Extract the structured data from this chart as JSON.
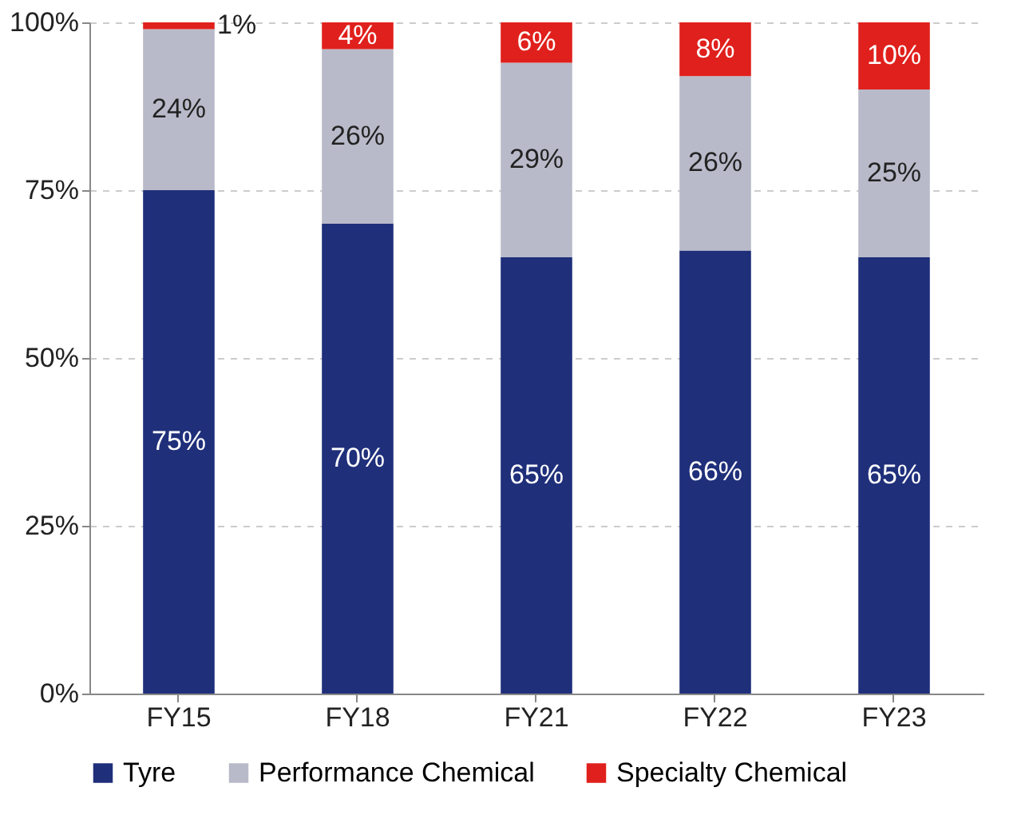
{
  "chart_data": {
    "type": "bar",
    "stacked": true,
    "categories": [
      "FY15",
      "FY18",
      "FY21",
      "FY22",
      "FY23"
    ],
    "series": [
      {
        "name": "Tyre",
        "color": "#1f2f7a",
        "values": [
          75,
          70,
          65,
          66,
          65
        ],
        "value_labels": [
          "75%",
          "70%",
          "65%",
          "66%",
          "65%"
        ]
      },
      {
        "name": "Performance Chemical",
        "color": "#b9bac9",
        "values": [
          24,
          26,
          29,
          26,
          25
        ],
        "value_labels": [
          "24%",
          "26%",
          "29%",
          "26%",
          "25%"
        ]
      },
      {
        "name": "Specialty Chemical",
        "color": "#e0201c",
        "values": [
          1,
          4,
          6,
          8,
          10
        ],
        "value_labels": [
          "1%",
          "4%",
          "6%",
          "8%",
          "10%"
        ]
      }
    ],
    "ylim": [
      0,
      100
    ],
    "yticks": [
      {
        "value": 0,
        "label": "0%"
      },
      {
        "value": 25,
        "label": "25%"
      },
      {
        "value": 50,
        "label": "50%"
      },
      {
        "value": 75,
        "label": "75%"
      },
      {
        "value": 100,
        "label": "100%"
      }
    ],
    "grid": "y",
    "legend": "bottom"
  }
}
